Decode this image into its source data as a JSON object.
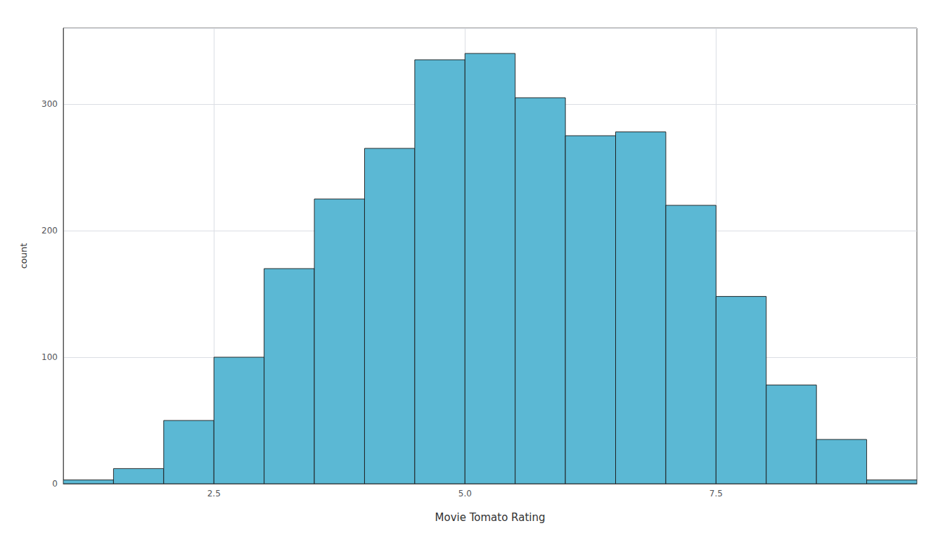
{
  "chart_data": {
    "type": "histogram",
    "bins": [
      1.0,
      1.5,
      2.0,
      2.5,
      3.0,
      3.5,
      4.0,
      4.5,
      5.0,
      5.5,
      6.0,
      6.5,
      7.0,
      7.5,
      8.0,
      8.5,
      9.0,
      9.5
    ],
    "values": [
      3,
      12,
      50,
      100,
      170,
      225,
      265,
      335,
      340,
      305,
      275,
      278,
      220,
      148,
      78,
      35,
      3
    ],
    "color": "#5BB8D4",
    "xlabel": "Movie Tomato Rating",
    "ylabel": "count",
    "xlim": [
      1.0,
      9.5
    ],
    "xticks": [
      {
        "value": 2.5,
        "label": "2.5"
      },
      {
        "value": 5.0,
        "label": "5.0"
      },
      {
        "value": 7.5,
        "label": "7.5"
      }
    ],
    "ylim": [
      0,
      360
    ],
    "yticks": [
      0,
      100,
      200,
      300
    ],
    "grid": true
  }
}
